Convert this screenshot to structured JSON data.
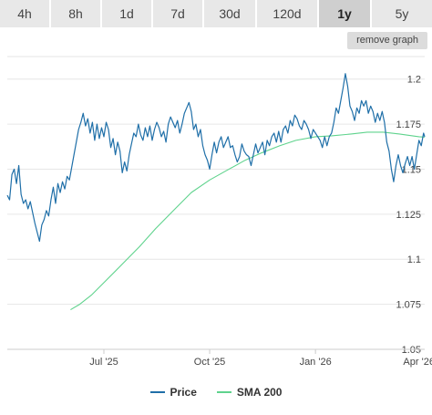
{
  "tabs": [
    {
      "label": "4h"
    },
    {
      "label": "8h"
    },
    {
      "label": "1d"
    },
    {
      "label": "7d"
    },
    {
      "label": "30d"
    },
    {
      "label": "120d"
    },
    {
      "label": "1y",
      "active": true
    },
    {
      "label": "5y"
    }
  ],
  "remove_graph_label": "remove graph",
  "colors": {
    "price": "#1f6fa8",
    "sma": "#5fd38d",
    "grid": "#e6e6e6",
    "tab_bg": "#e8e8e8",
    "tab_active_bg": "#cfcfcf"
  },
  "legend": [
    {
      "label": "Price",
      "color": "#1f6fa8"
    },
    {
      "label": "SMA 200",
      "color": "#5fd38d"
    }
  ],
  "chart_data": {
    "type": "line",
    "title": "",
    "xlabel": "",
    "ylabel": "",
    "x_ticks": [
      {
        "label": "Jul '25",
        "value": "2025-07-01"
      },
      {
        "label": "Oct '25",
        "value": "2025-10-01"
      },
      {
        "label": "Jan '26",
        "value": "2026-01-01"
      },
      {
        "label": "Apr '26",
        "value": "2026-04-01"
      }
    ],
    "xlim": [
      "2025-04-08",
      "2026-04-06"
    ],
    "y_ticks": [
      1.05,
      1.075,
      1.1,
      1.125,
      1.15,
      1.175,
      1.2
    ],
    "ylim": [
      1.05,
      1.2125
    ],
    "y_axis_side": "right",
    "grid": "horizontal",
    "series": [
      {
        "name": "Price",
        "color": "#1f6fa8",
        "points": [
          [
            "2025-04-08",
            1.1355
          ],
          [
            "2025-04-10",
            1.133
          ],
          [
            "2025-04-12",
            1.147
          ],
          [
            "2025-04-14",
            1.15
          ],
          [
            "2025-04-16",
            1.142
          ],
          [
            "2025-04-18",
            1.152
          ],
          [
            "2025-04-20",
            1.136
          ],
          [
            "2025-04-22",
            1.131
          ],
          [
            "2025-04-24",
            1.133
          ],
          [
            "2025-04-26",
            1.128
          ],
          [
            "2025-04-28",
            1.132
          ],
          [
            "2025-04-30",
            1.126
          ],
          [
            "2025-05-02",
            1.12
          ],
          [
            "2025-05-04",
            1.115
          ],
          [
            "2025-05-06",
            1.11
          ],
          [
            "2025-05-08",
            1.119
          ],
          [
            "2025-05-10",
            1.122
          ],
          [
            "2025-05-12",
            1.127
          ],
          [
            "2025-05-14",
            1.124
          ],
          [
            "2025-05-16",
            1.133
          ],
          [
            "2025-05-18",
            1.14
          ],
          [
            "2025-05-20",
            1.131
          ],
          [
            "2025-05-22",
            1.142
          ],
          [
            "2025-05-24",
            1.137
          ],
          [
            "2025-05-26",
            1.143
          ],
          [
            "2025-05-28",
            1.139
          ],
          [
            "2025-05-30",
            1.146
          ],
          [
            "2025-06-01",
            1.144
          ],
          [
            "2025-06-03",
            1.151
          ],
          [
            "2025-06-05",
            1.158
          ],
          [
            "2025-06-07",
            1.165
          ],
          [
            "2025-06-09",
            1.172
          ],
          [
            "2025-06-11",
            1.176
          ],
          [
            "2025-06-13",
            1.181
          ],
          [
            "2025-06-15",
            1.174
          ],
          [
            "2025-06-17",
            1.178
          ],
          [
            "2025-06-19",
            1.17
          ],
          [
            "2025-06-21",
            1.176
          ],
          [
            "2025-06-23",
            1.166
          ],
          [
            "2025-06-25",
            1.175
          ],
          [
            "2025-06-27",
            1.167
          ],
          [
            "2025-06-29",
            1.173
          ],
          [
            "2025-07-01",
            1.168
          ],
          [
            "2025-07-03",
            1.176
          ],
          [
            "2025-07-05",
            1.172
          ],
          [
            "2025-07-07",
            1.162
          ],
          [
            "2025-07-09",
            1.167
          ],
          [
            "2025-07-11",
            1.158
          ],
          [
            "2025-07-13",
            1.165
          ],
          [
            "2025-07-15",
            1.16
          ],
          [
            "2025-07-17",
            1.148
          ],
          [
            "2025-07-19",
            1.154
          ],
          [
            "2025-07-21",
            1.149
          ],
          [
            "2025-07-23",
            1.158
          ],
          [
            "2025-07-25",
            1.164
          ],
          [
            "2025-07-27",
            1.17
          ],
          [
            "2025-07-29",
            1.168
          ],
          [
            "2025-07-31",
            1.175
          ],
          [
            "2025-08-02",
            1.169
          ],
          [
            "2025-08-04",
            1.166
          ],
          [
            "2025-08-06",
            1.173
          ],
          [
            "2025-08-08",
            1.168
          ],
          [
            "2025-08-10",
            1.174
          ],
          [
            "2025-08-12",
            1.166
          ],
          [
            "2025-08-14",
            1.172
          ],
          [
            "2025-08-16",
            1.176
          ],
          [
            "2025-08-18",
            1.173
          ],
          [
            "2025-08-20",
            1.168
          ],
          [
            "2025-08-22",
            1.171
          ],
          [
            "2025-08-24",
            1.165
          ],
          [
            "2025-08-26",
            1.175
          ],
          [
            "2025-08-28",
            1.179
          ],
          [
            "2025-08-30",
            1.176
          ],
          [
            "2025-09-01",
            1.173
          ],
          [
            "2025-09-03",
            1.177
          ],
          [
            "2025-09-05",
            1.17
          ],
          [
            "2025-09-07",
            1.175
          ],
          [
            "2025-09-09",
            1.181
          ],
          [
            "2025-09-11",
            1.184
          ],
          [
            "2025-09-13",
            1.187
          ],
          [
            "2025-09-15",
            1.182
          ],
          [
            "2025-09-17",
            1.172
          ],
          [
            "2025-09-19",
            1.175
          ],
          [
            "2025-09-21",
            1.168
          ],
          [
            "2025-09-23",
            1.172
          ],
          [
            "2025-09-25",
            1.163
          ],
          [
            "2025-09-27",
            1.158
          ],
          [
            "2025-09-29",
            1.155
          ],
          [
            "2025-10-01",
            1.15
          ],
          [
            "2025-10-03",
            1.158
          ],
          [
            "2025-10-05",
            1.165
          ],
          [
            "2025-10-07",
            1.159
          ],
          [
            "2025-10-09",
            1.165
          ],
          [
            "2025-10-11",
            1.168
          ],
          [
            "2025-10-13",
            1.162
          ],
          [
            "2025-10-15",
            1.165
          ],
          [
            "2025-10-17",
            1.168
          ],
          [
            "2025-10-19",
            1.162
          ],
          [
            "2025-10-21",
            1.163
          ],
          [
            "2025-10-23",
            1.158
          ],
          [
            "2025-10-25",
            1.154
          ],
          [
            "2025-10-27",
            1.157
          ],
          [
            "2025-10-29",
            1.164
          ],
          [
            "2025-10-31",
            1.16
          ],
          [
            "2025-11-02",
            1.158
          ],
          [
            "2025-11-04",
            1.157
          ],
          [
            "2025-11-06",
            1.152
          ],
          [
            "2025-11-08",
            1.158
          ],
          [
            "2025-11-10",
            1.164
          ],
          [
            "2025-11-12",
            1.159
          ],
          [
            "2025-11-14",
            1.162
          ],
          [
            "2025-11-16",
            1.165
          ],
          [
            "2025-11-18",
            1.158
          ],
          [
            "2025-11-20",
            1.166
          ],
          [
            "2025-11-22",
            1.163
          ],
          [
            "2025-11-24",
            1.168
          ],
          [
            "2025-11-26",
            1.17
          ],
          [
            "2025-11-28",
            1.165
          ],
          [
            "2025-11-30",
            1.171
          ],
          [
            "2025-12-02",
            1.165
          ],
          [
            "2025-12-04",
            1.172
          ],
          [
            "2025-12-06",
            1.174
          ],
          [
            "2025-12-08",
            1.17
          ],
          [
            "2025-12-10",
            1.177
          ],
          [
            "2025-12-12",
            1.174
          ],
          [
            "2025-12-14",
            1.18
          ],
          [
            "2025-12-16",
            1.178
          ],
          [
            "2025-12-18",
            1.174
          ],
          [
            "2025-12-20",
            1.172
          ],
          [
            "2025-12-22",
            1.177
          ],
          [
            "2025-12-24",
            1.175
          ],
          [
            "2025-12-26",
            1.172
          ],
          [
            "2025-12-28",
            1.167
          ],
          [
            "2025-12-30",
            1.172
          ],
          [
            "2026-01-01",
            1.17
          ],
          [
            "2026-01-03",
            1.168
          ],
          [
            "2026-01-05",
            1.166
          ],
          [
            "2026-01-07",
            1.162
          ],
          [
            "2026-01-09",
            1.168
          ],
          [
            "2026-01-11",
            1.163
          ],
          [
            "2026-01-13",
            1.168
          ],
          [
            "2026-01-15",
            1.17
          ],
          [
            "2026-01-17",
            1.176
          ],
          [
            "2026-01-19",
            1.184
          ],
          [
            "2026-01-21",
            1.181
          ],
          [
            "2026-01-23",
            1.188
          ],
          [
            "2026-01-25",
            1.195
          ],
          [
            "2026-01-27",
            1.203
          ],
          [
            "2026-01-29",
            1.196
          ],
          [
            "2026-01-31",
            1.185
          ],
          [
            "2026-02-02",
            1.182
          ],
          [
            "2026-02-04",
            1.177
          ],
          [
            "2026-02-06",
            1.184
          ],
          [
            "2026-02-08",
            1.181
          ],
          [
            "2026-02-10",
            1.188
          ],
          [
            "2026-02-12",
            1.185
          ],
          [
            "2026-02-14",
            1.188
          ],
          [
            "2026-02-16",
            1.181
          ],
          [
            "2026-02-18",
            1.185
          ],
          [
            "2026-02-20",
            1.182
          ],
          [
            "2026-02-22",
            1.176
          ],
          [
            "2026-02-24",
            1.181
          ],
          [
            "2026-02-26",
            1.177
          ],
          [
            "2026-02-28",
            1.182
          ],
          [
            "2026-03-02",
            1.176
          ],
          [
            "2026-03-04",
            1.165
          ],
          [
            "2026-03-06",
            1.16
          ],
          [
            "2026-03-08",
            1.15
          ],
          [
            "2026-03-10",
            1.143
          ],
          [
            "2026-03-12",
            1.152
          ],
          [
            "2026-03-14",
            1.158
          ],
          [
            "2026-03-16",
            1.152
          ],
          [
            "2026-03-18",
            1.148
          ],
          [
            "2026-03-20",
            1.153
          ],
          [
            "2026-03-22",
            1.157
          ],
          [
            "2026-03-24",
            1.152
          ],
          [
            "2026-03-26",
            1.157
          ],
          [
            "2026-03-28",
            1.15
          ],
          [
            "2026-03-30",
            1.158
          ],
          [
            "2026-04-01",
            1.166
          ],
          [
            "2026-04-03",
            1.163
          ],
          [
            "2026-04-05",
            1.17
          ],
          [
            "2026-04-06",
            1.168
          ]
        ]
      },
      {
        "name": "SMA 200",
        "color": "#5fd38d",
        "points": [
          [
            "2025-06-02",
            1.072
          ],
          [
            "2025-06-10",
            1.075
          ],
          [
            "2025-06-20",
            1.08
          ],
          [
            "2025-07-01",
            1.087
          ],
          [
            "2025-07-15",
            1.096
          ],
          [
            "2025-08-01",
            1.107
          ],
          [
            "2025-08-15",
            1.117
          ],
          [
            "2025-09-01",
            1.128
          ],
          [
            "2025-09-15",
            1.137
          ],
          [
            "2025-10-01",
            1.144
          ],
          [
            "2025-10-15",
            1.149
          ],
          [
            "2025-11-01",
            1.155
          ],
          [
            "2025-11-15",
            1.159
          ],
          [
            "2025-12-01",
            1.163
          ],
          [
            "2025-12-15",
            1.166
          ],
          [
            "2026-01-01",
            1.168
          ],
          [
            "2026-01-15",
            1.1685
          ],
          [
            "2026-02-01",
            1.1695
          ],
          [
            "2026-02-15",
            1.1705
          ],
          [
            "2026-03-01",
            1.1705
          ],
          [
            "2026-03-15",
            1.1695
          ],
          [
            "2026-04-01",
            1.168
          ],
          [
            "2026-04-06",
            1.1678
          ]
        ]
      }
    ]
  }
}
